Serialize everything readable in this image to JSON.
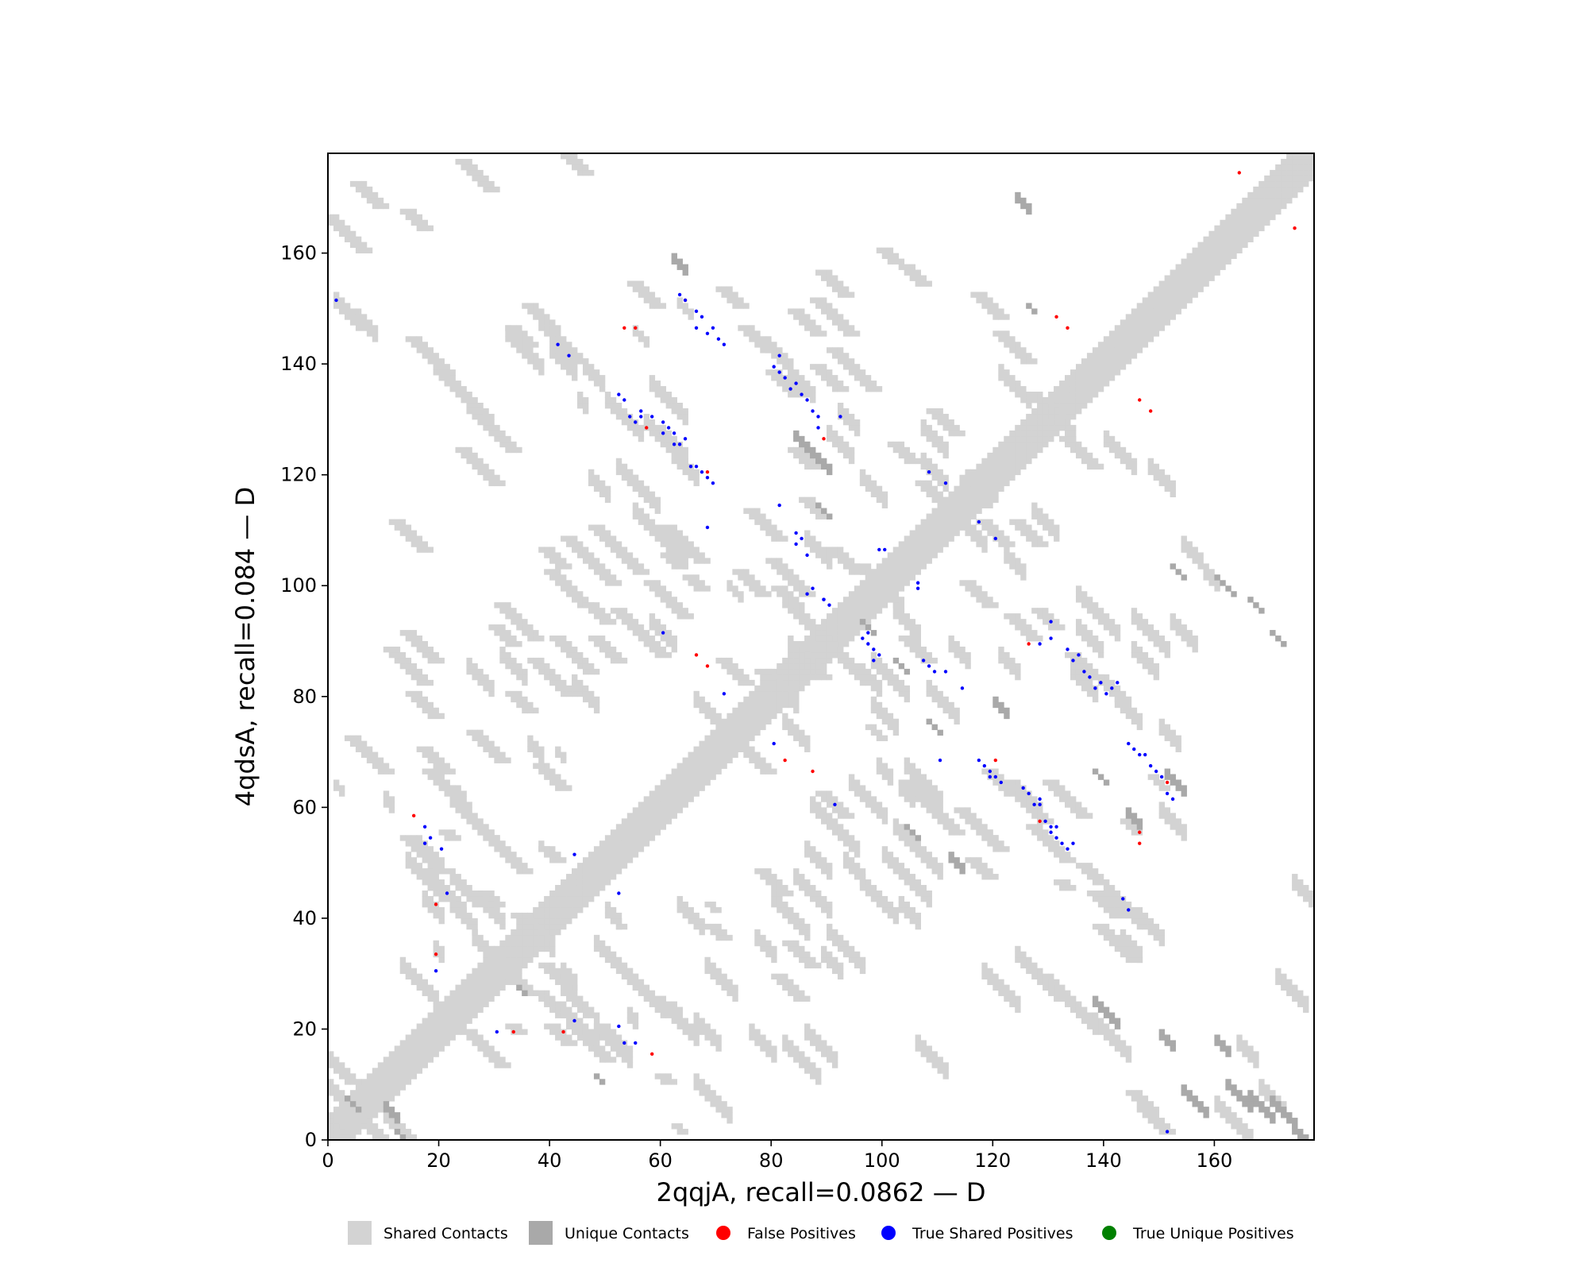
{
  "chart_data": {
    "type": "heatmap",
    "title": "",
    "xlabel": "2qqjA, recall=0.0862 — D",
    "ylabel": "4qdsA, recall=0.084 — D",
    "xlim": [
      0,
      178
    ],
    "ylim": [
      0,
      178
    ],
    "xticks": [
      "0",
      "20",
      "40",
      "60",
      "80",
      "100",
      "120",
      "140",
      "160"
    ],
    "yticks": [
      "0",
      "20",
      "40",
      "60",
      "80",
      "100",
      "120",
      "140",
      "160"
    ],
    "grid": false,
    "legend_position": "bottom",
    "legend": [
      {
        "label": "Shared Contacts",
        "color": "#d3d3d3",
        "marker": "square"
      },
      {
        "label": "Unique Contacts",
        "color": "#a9a9a9",
        "marker": "square"
      },
      {
        "label": "False Positives",
        "color": "#ff0000",
        "marker": "circle"
      },
      {
        "label": "True Shared Positives",
        "color": "#0000ff",
        "marker": "circle"
      },
      {
        "label": "True Unique Positives",
        "color": "#008000",
        "marker": "circle"
      }
    ],
    "diagonal_band": {
      "from": 0,
      "to": 177,
      "half_width": 4
    },
    "shared_contact_blocks": [
      [
        2,
        11,
        0,
        2
      ],
      [
        5,
        13,
        3,
        3
      ],
      [
        10,
        15,
        3,
        3
      ],
      [
        1,
        5,
        150,
        3
      ],
      [
        5,
        8,
        147,
        3
      ],
      [
        32,
        38,
        144,
        3
      ],
      [
        40,
        44,
        141,
        3
      ],
      [
        48,
        54,
        19,
        3
      ],
      [
        48,
        55,
        34,
        3
      ],
      [
        66,
        72,
        9,
        3
      ],
      [
        10,
        11,
        60,
        3
      ],
      [
        17,
        20,
        42,
        3
      ],
      [
        14,
        20,
        49,
        3
      ],
      [
        26,
        32,
        35,
        3
      ],
      [
        16,
        20,
        52,
        3
      ],
      [
        21,
        24,
        43,
        3
      ],
      [
        19,
        20,
        33,
        3
      ],
      [
        22,
        26,
        41,
        3
      ],
      [
        13,
        19,
        30,
        3
      ],
      [
        38,
        39,
        52,
        2
      ],
      [
        42,
        44,
        29,
        3
      ],
      [
        41,
        42,
        69,
        2
      ],
      [
        43,
        45,
        20,
        3
      ],
      [
        46,
        48,
        19,
        2
      ],
      [
        36,
        38,
        70,
        3
      ],
      [
        1,
        2,
        63,
        2
      ],
      [
        50,
        52,
        40,
        3
      ],
      [
        54,
        55,
        21,
        3
      ],
      [
        62,
        63,
        22,
        3
      ],
      [
        55,
        57,
        145,
        2
      ],
      [
        63,
        65,
        150,
        2
      ],
      [
        52,
        55,
        120,
        3
      ],
      [
        54,
        59,
        118,
        3
      ],
      [
        55,
        64,
        112,
        3
      ],
      [
        45,
        46,
        132,
        3
      ],
      [
        47,
        50,
        118,
        3
      ],
      [
        58,
        64,
        135,
        3
      ],
      [
        60,
        64,
        126,
        3
      ],
      [
        72,
        74,
        99,
        2
      ],
      [
        92,
        95,
        130,
        3
      ],
      [
        103,
        105,
        62,
        3
      ],
      [
        102,
        110,
        55,
        3
      ],
      [
        100,
        108,
        50,
        3
      ],
      [
        103,
        106,
        41,
        3
      ],
      [
        96,
        102,
        45,
        3
      ],
      [
        90,
        96,
        36,
        3
      ],
      [
        80,
        86,
        42,
        3
      ],
      [
        84,
        90,
        46,
        3
      ],
      [
        89,
        92,
        32,
        3
      ],
      [
        104,
        110,
        66,
        3
      ],
      [
        94,
        100,
        63,
        3
      ],
      [
        87,
        95,
        59,
        3
      ],
      [
        86,
        90,
        51,
        3
      ],
      [
        77,
        80,
        35,
        3
      ],
      [
        46,
        49,
        138,
        3
      ],
      [
        50,
        56,
        132,
        3
      ],
      [
        57,
        61,
        128,
        3
      ],
      [
        62,
        66,
        122,
        3
      ],
      [
        112,
        115,
        88,
        3
      ],
      [
        121,
        124,
        86,
        3
      ],
      [
        134,
        138,
        83,
        3
      ],
      [
        142,
        146,
        78,
        3
      ],
      [
        150,
        153,
        73,
        3
      ],
      [
        135,
        142,
        97,
        3
      ],
      [
        145,
        151,
        93,
        3
      ],
      [
        127,
        131,
        112,
        3
      ],
      [
        115,
        119,
        118,
        3
      ],
      [
        107,
        111,
        121,
        3
      ],
      [
        121,
        126,
        137,
        3
      ],
      [
        129,
        134,
        131,
        3
      ],
      [
        140,
        145,
        125,
        3
      ],
      [
        148,
        152,
        120,
        3
      ],
      [
        154,
        157,
        106,
        3
      ],
      [
        158,
        160,
        101,
        3
      ],
      [
        152,
        156,
        92,
        3
      ],
      [
        145,
        149,
        87,
        3
      ],
      [
        135,
        139,
        91,
        3
      ],
      [
        108,
        113,
        80,
        3
      ],
      [
        98,
        104,
        85,
        3
      ],
      [
        90,
        96,
        88,
        3
      ],
      [
        150,
        154,
        58,
        3
      ],
      [
        146,
        150,
        39,
        3
      ],
      [
        140,
        146,
        44,
        3
      ],
      [
        143,
        146,
        35,
        3
      ],
      [
        138,
        144,
        20,
        3
      ],
      [
        130,
        138,
        27,
        3
      ],
      [
        124,
        131,
        32,
        3
      ],
      [
        118,
        124,
        29,
        3
      ],
      [
        106,
        111,
        16,
        3
      ],
      [
        82,
        88,
        16,
        3
      ],
      [
        76,
        80,
        18,
        3
      ],
      [
        66,
        70,
        20,
        3
      ],
      [
        60,
        66,
        23,
        3
      ],
      [
        54,
        60,
        28,
        3
      ],
      [
        36,
        40,
        37,
        3
      ],
      [
        27,
        31,
        42,
        3
      ],
      [
        22,
        26,
        46,
        3
      ],
      [
        160,
        166,
        5,
        3
      ],
      [
        168,
        172,
        8,
        3
      ],
      [
        164,
        167,
        16,
        3
      ],
      [
        171,
        176,
        28,
        3
      ],
      [
        174,
        177,
        45,
        3
      ],
      [
        107,
        111,
        127,
        3
      ],
      [
        115,
        118,
        109,
        3
      ],
      [
        122,
        125,
        104,
        3
      ],
      [
        79,
        83,
        142,
        3
      ],
      [
        83,
        87,
        137,
        3
      ],
      [
        90,
        94,
        126,
        3
      ],
      [
        96,
        100,
        118,
        3
      ],
      [
        86,
        90,
        107,
        3
      ],
      [
        99,
        103,
        99,
        3
      ],
      [
        102,
        106,
        94,
        3
      ],
      [
        82,
        86,
        74,
        3
      ],
      [
        99,
        101,
        66,
        3
      ],
      [
        93,
        96,
        49,
        3
      ],
      [
        86,
        91,
        18,
        3
      ],
      [
        63,
        67,
        41,
        3
      ],
      [
        68,
        73,
        30,
        3
      ],
      [
        44,
        48,
        81,
        3
      ],
      [
        25,
        29,
        84,
        3
      ],
      [
        31,
        35,
        86,
        3
      ],
      [
        58,
        62,
        92,
        3
      ],
      [
        66,
        70,
        78,
        3
      ],
      [
        79,
        84,
        82,
        3
      ],
      [
        83,
        86,
        88,
        3
      ],
      [
        96,
        99,
        83,
        3
      ],
      [
        98,
        102,
        77,
        3
      ]
    ],
    "unique_contact_blocks": [
      [
        3,
        5,
        7,
        1
      ],
      [
        10,
        12,
        5,
        2
      ],
      [
        12,
        13,
        1,
        1
      ],
      [
        34,
        35,
        27,
        1
      ],
      [
        48,
        49,
        11,
        1
      ],
      [
        62,
        64,
        158,
        2
      ],
      [
        84,
        90,
        126,
        2
      ],
      [
        88,
        90,
        114,
        1
      ],
      [
        138,
        142,
        24,
        2
      ],
      [
        150,
        152,
        18,
        2
      ],
      [
        160,
        162,
        17,
        2
      ],
      [
        124,
        126,
        169,
        2
      ],
      [
        126,
        127,
        150,
        1
      ],
      [
        152,
        154,
        103,
        1
      ],
      [
        160,
        163,
        101,
        1
      ],
      [
        166,
        168,
        97,
        1
      ],
      [
        170,
        172,
        91,
        1
      ],
      [
        112,
        114,
        50,
        2
      ],
      [
        120,
        122,
        78,
        2
      ],
      [
        138,
        140,
        66,
        1
      ],
      [
        144,
        146,
        58,
        2
      ],
      [
        151,
        154,
        65,
        2
      ],
      [
        104,
        106,
        56,
        1
      ],
      [
        108,
        110,
        75,
        1
      ],
      [
        102,
        104,
        86,
        1
      ],
      [
        96,
        98,
        93,
        1
      ],
      [
        154,
        158,
        8,
        2
      ],
      [
        162,
        166,
        9,
        2
      ],
      [
        166,
        170,
        7,
        2
      ],
      [
        170,
        174,
        6,
        2
      ],
      [
        174,
        176,
        1,
        2
      ]
    ],
    "false_positives": [
      [
        15,
        58
      ],
      [
        19,
        42
      ],
      [
        19,
        33
      ],
      [
        33,
        19
      ],
      [
        42,
        19
      ],
      [
        58,
        15
      ],
      [
        55,
        146
      ],
      [
        53,
        146
      ],
      [
        57,
        128
      ],
      [
        68,
        120
      ],
      [
        64,
        151
      ],
      [
        66,
        87
      ],
      [
        68,
        85
      ],
      [
        82,
        68
      ],
      [
        87,
        66
      ],
      [
        89,
        126
      ],
      [
        120,
        68
      ],
      [
        126,
        89
      ],
      [
        128,
        57
      ],
      [
        131,
        148
      ],
      [
        133,
        146
      ],
      [
        146,
        133
      ],
      [
        148,
        131
      ],
      [
        146,
        55
      ],
      [
        146,
        53
      ],
      [
        151,
        64
      ],
      [
        164,
        174
      ],
      [
        174,
        164
      ]
    ],
    "true_shared_positives": [
      [
        1,
        151
      ],
      [
        17,
        56
      ],
      [
        18,
        54
      ],
      [
        17,
        53
      ],
      [
        20,
        52
      ],
      [
        21,
        44
      ],
      [
        19,
        30
      ],
      [
        30,
        19
      ],
      [
        44,
        21
      ],
      [
        44,
        51
      ],
      [
        52,
        44
      ],
      [
        52,
        20
      ],
      [
        53,
        17
      ],
      [
        55,
        17
      ],
      [
        41,
        143
      ],
      [
        43,
        141
      ],
      [
        52,
        134
      ],
      [
        53,
        133
      ],
      [
        54,
        130
      ],
      [
        55,
        129
      ],
      [
        56,
        130
      ],
      [
        56,
        131
      ],
      [
        58,
        130
      ],
      [
        60,
        129
      ],
      [
        60,
        127
      ],
      [
        61,
        128
      ],
      [
        62,
        125
      ],
      [
        62,
        127
      ],
      [
        63,
        125
      ],
      [
        64,
        126
      ],
      [
        65,
        121
      ],
      [
        66,
        121
      ],
      [
        67,
        120
      ],
      [
        68,
        119
      ],
      [
        69,
        118
      ],
      [
        68,
        110
      ],
      [
        71,
        80
      ],
      [
        80,
        71
      ],
      [
        60,
        91
      ],
      [
        63,
        152
      ],
      [
        64,
        151
      ],
      [
        66,
        149
      ],
      [
        66,
        146
      ],
      [
        67,
        148
      ],
      [
        68,
        145
      ],
      [
        69,
        146
      ],
      [
        70,
        144
      ],
      [
        71,
        143
      ],
      [
        81,
        141
      ],
      [
        80,
        139
      ],
      [
        81,
        138
      ],
      [
        82,
        137
      ],
      [
        83,
        135
      ],
      [
        84,
        136
      ],
      [
        85,
        134
      ],
      [
        86,
        133
      ],
      [
        87,
        131
      ],
      [
        88,
        128
      ],
      [
        88,
        130
      ],
      [
        92,
        130
      ],
      [
        81,
        114
      ],
      [
        84,
        109
      ],
      [
        85,
        108
      ],
      [
        86,
        105
      ],
      [
        84,
        107
      ],
      [
        87,
        99
      ],
      [
        86,
        98
      ],
      [
        89,
        97
      ],
      [
        90,
        96
      ],
      [
        97,
        89
      ],
      [
        96,
        90
      ],
      [
        98,
        86
      ],
      [
        99,
        87
      ],
      [
        98,
        88
      ],
      [
        97,
        91
      ],
      [
        99,
        106
      ],
      [
        100,
        106
      ],
      [
        106,
        100
      ],
      [
        106,
        99
      ],
      [
        108,
        120
      ],
      [
        111,
        118
      ],
      [
        117,
        111
      ],
      [
        120,
        108
      ],
      [
        89,
        97
      ],
      [
        91,
        60
      ],
      [
        107,
        86
      ],
      [
        109,
        84
      ],
      [
        108,
        85
      ],
      [
        111,
        84
      ],
      [
        114,
        81
      ],
      [
        110,
        68
      ],
      [
        117,
        68
      ],
      [
        118,
        67
      ],
      [
        119,
        65
      ],
      [
        119,
        66
      ],
      [
        120,
        65
      ],
      [
        121,
        64
      ],
      [
        125,
        63
      ],
      [
        126,
        62
      ],
      [
        127,
        60
      ],
      [
        128,
        60
      ],
      [
        128,
        61
      ],
      [
        129,
        57
      ],
      [
        130,
        56
      ],
      [
        130,
        55
      ],
      [
        131,
        54
      ],
      [
        131,
        56
      ],
      [
        132,
        53
      ],
      [
        133,
        52
      ],
      [
        134,
        53
      ],
      [
        130,
        93
      ],
      [
        128,
        89
      ],
      [
        130,
        90
      ],
      [
        133,
        88
      ],
      [
        134,
        86
      ],
      [
        135,
        87
      ],
      [
        136,
        84
      ],
      [
        137,
        83
      ],
      [
        138,
        81
      ],
      [
        139,
        82
      ],
      [
        140,
        80
      ],
      [
        141,
        81
      ],
      [
        142,
        82
      ],
      [
        144,
        71
      ],
      [
        145,
        70
      ],
      [
        146,
        69
      ],
      [
        147,
        69
      ],
      [
        148,
        67
      ],
      [
        149,
        66
      ],
      [
        150,
        65
      ],
      [
        152,
        61
      ],
      [
        151,
        62
      ],
      [
        143,
        43
      ],
      [
        144,
        41
      ],
      [
        151,
        1
      ]
    ],
    "true_unique_positives": []
  }
}
